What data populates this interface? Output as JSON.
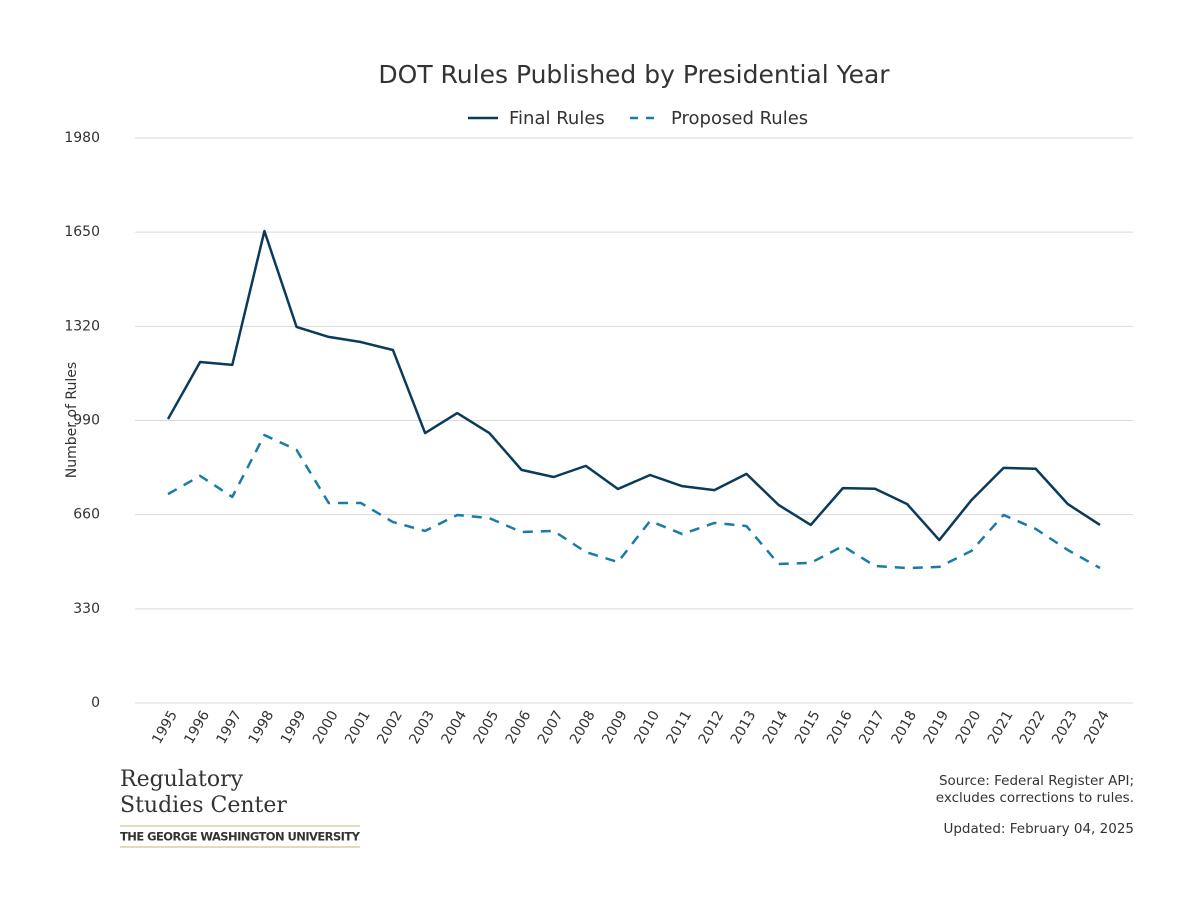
{
  "chart_data": {
    "type": "line",
    "title": "DOT Rules Published by Presidential Year",
    "y_label": "Number of Rules",
    "categories": [
      "1995",
      "1996",
      "1997",
      "1998",
      "1999",
      "2000",
      "2001",
      "2002",
      "2003",
      "2004",
      "2005",
      "2006",
      "2007",
      "2008",
      "2009",
      "2010",
      "2011",
      "2012",
      "2013",
      "2014",
      "2015",
      "2016",
      "2017",
      "2018",
      "2019",
      "2020",
      "2021",
      "2022",
      "2023",
      "2024"
    ],
    "series": [
      {
        "name": "Final Rules",
        "color": "#0b3a5a",
        "style": "solid",
        "values": [
          995,
          1195,
          1185,
          1654,
          1318,
          1283,
          1265,
          1237,
          946,
          1016,
          946,
          817,
          792,
          831,
          750,
          799,
          760,
          746,
          803,
          694,
          624,
          753,
          751,
          697,
          571,
          711,
          824,
          821,
          697,
          624
        ]
      },
      {
        "name": "Proposed Rules",
        "color": "#1a7aa8",
        "style": "dashed",
        "values": [
          732,
          796,
          722,
          939,
          887,
          701,
          701,
          634,
          603,
          659,
          648,
          599,
          603,
          529,
          494,
          638,
          592,
          631,
          620,
          487,
          491,
          550,
          480,
          473,
          477,
          533,
          659,
          610,
          536,
          473
        ]
      }
    ],
    "ylim": [
      0,
      1980
    ],
    "yticks": [
      0,
      330,
      660,
      990,
      1320,
      1650,
      1980
    ],
    "grid": true,
    "legend": "top",
    "source": [
      "Source: Federal Register API;",
      "excludes corrections to rules."
    ],
    "updated": "Updated: February 04, 2025"
  },
  "branding": {
    "lines": [
      "Regulatory",
      "Studies Center"
    ],
    "university": "THE GEORGE WASHINGTON UNIVERSITY"
  }
}
